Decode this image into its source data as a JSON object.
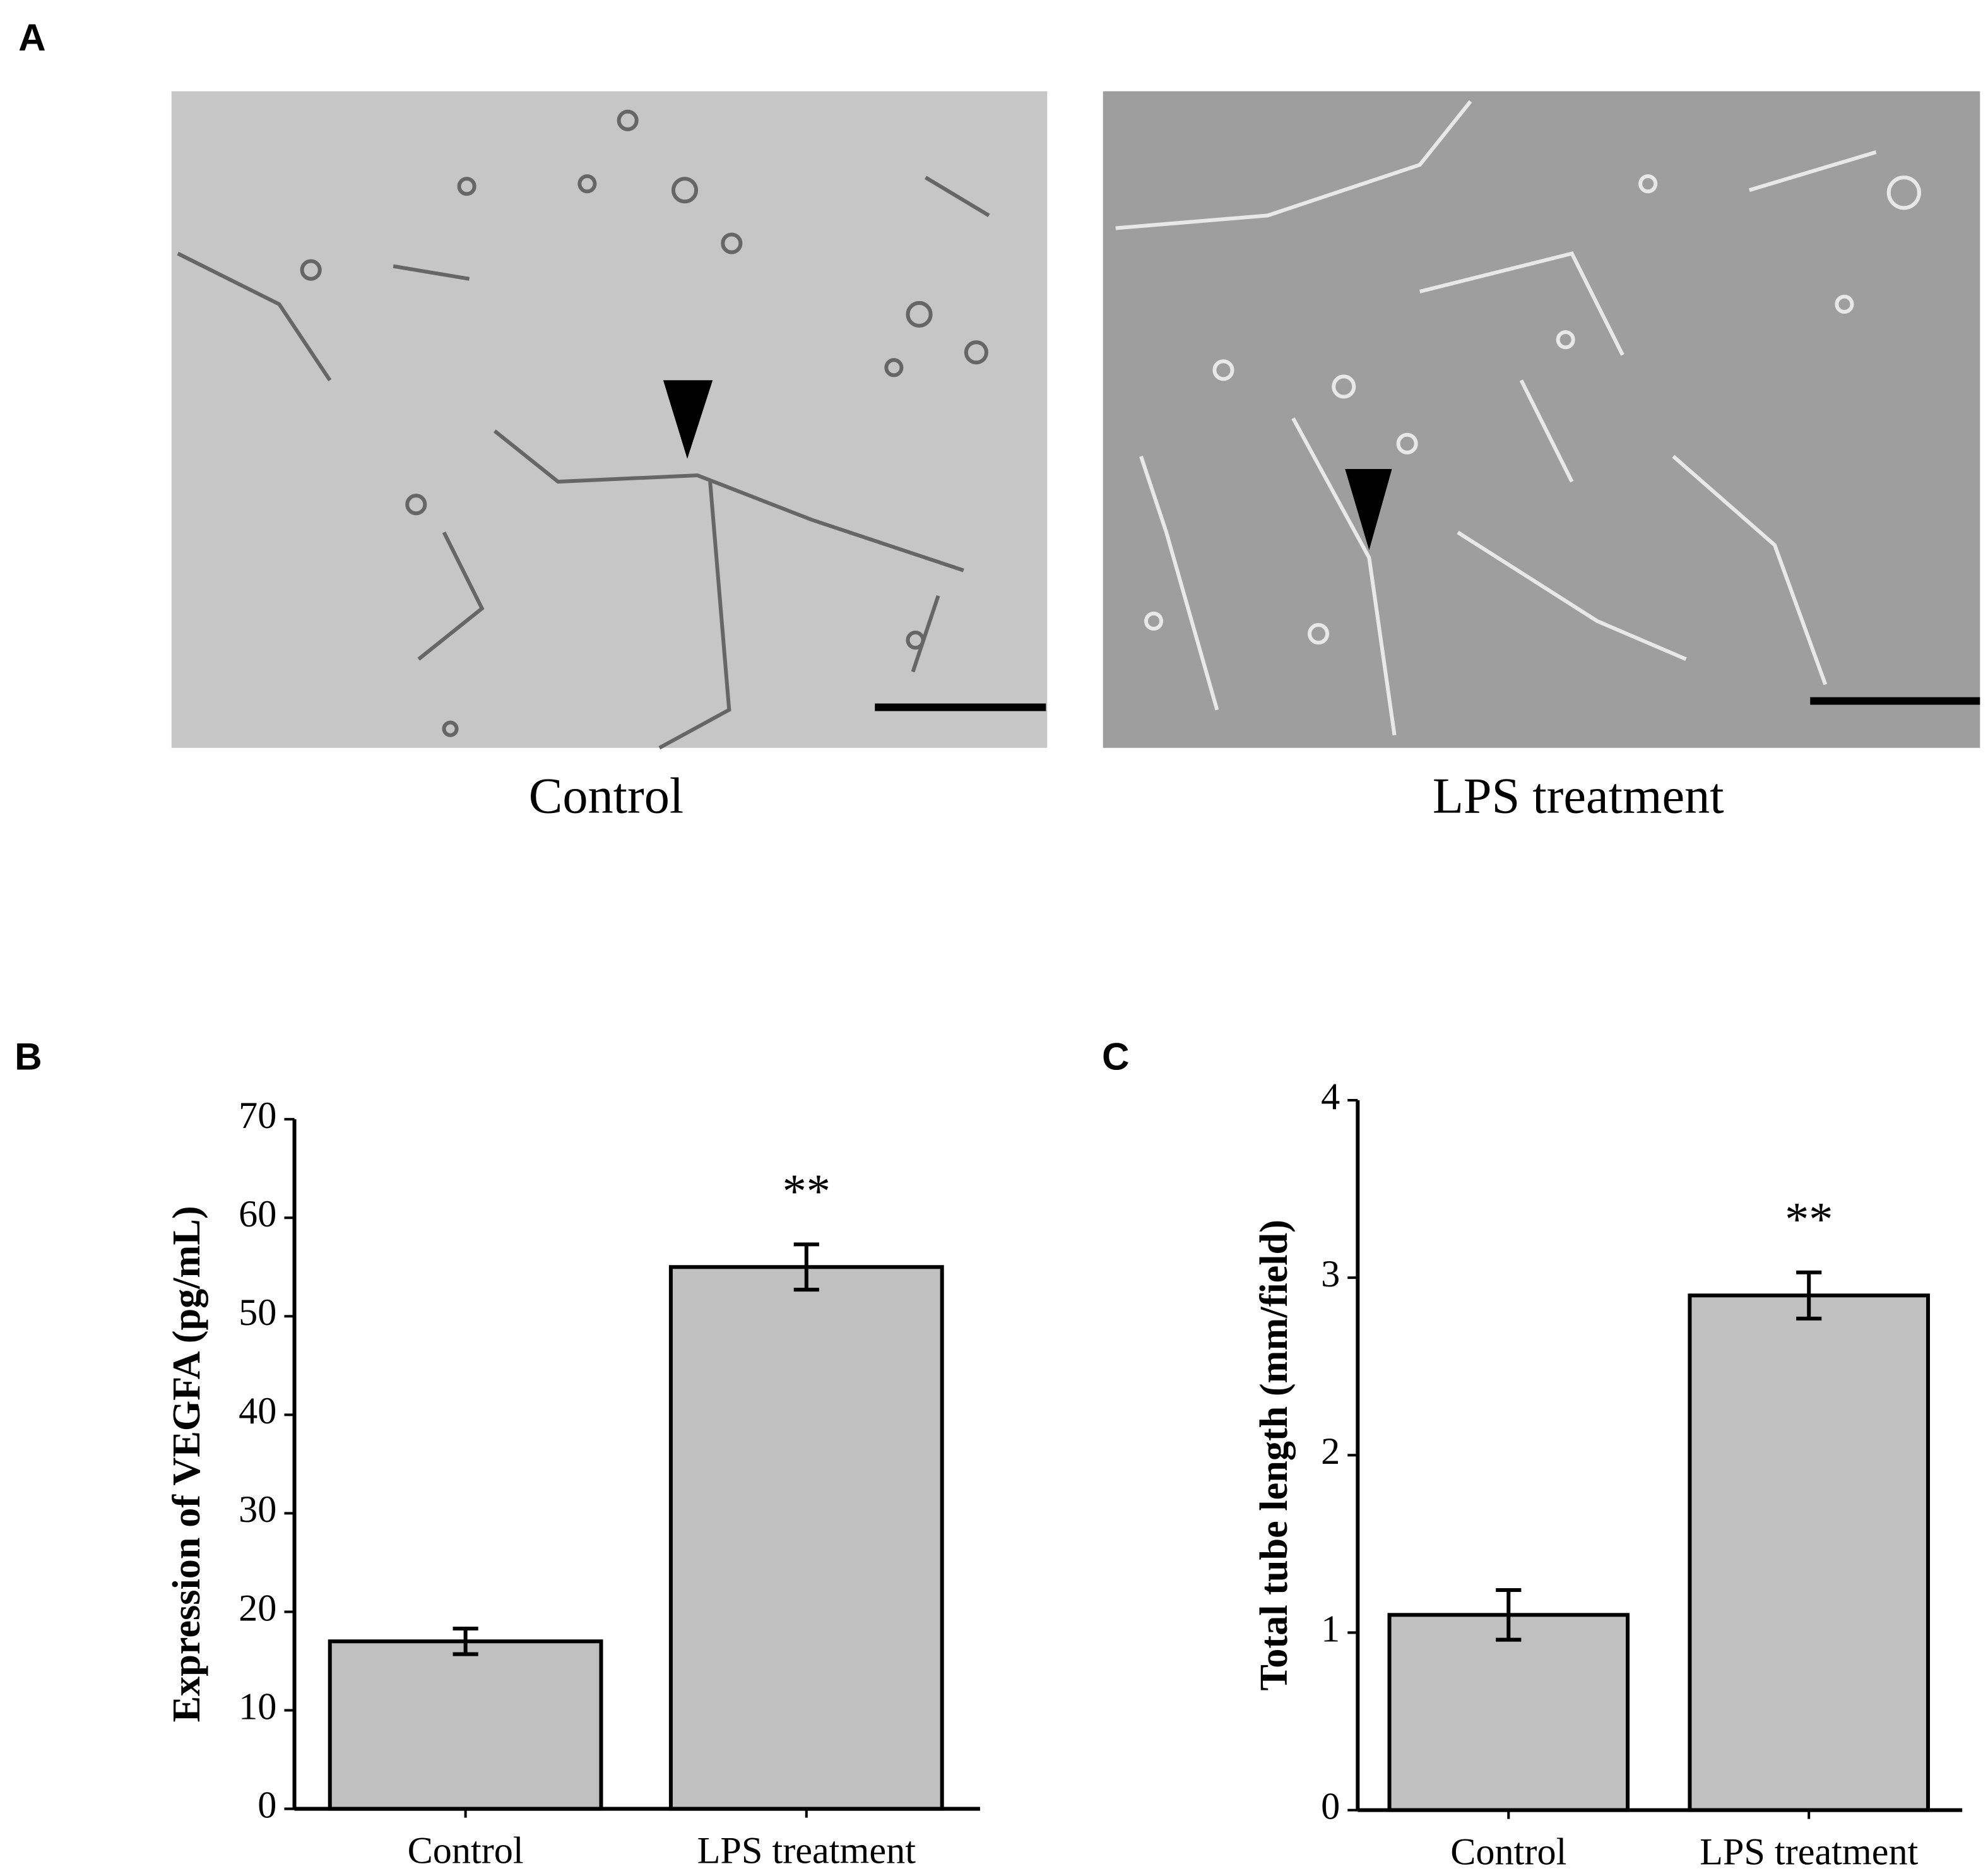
{
  "panel_labels": [
    "A",
    "B",
    "C"
  ],
  "images": [
    {
      "caption": "Control"
    },
    {
      "caption": "LPS treatment"
    }
  ],
  "chart_data": [
    {
      "type": "bar",
      "ylabel": "Expression of VEGFA (pg/mL)",
      "categories": [
        "Control",
        "LPS treatment"
      ],
      "values": [
        17,
        55
      ],
      "errors": [
        1.3,
        2.3
      ],
      "annotations": [
        null,
        "**"
      ],
      "color": "#c0c0c0",
      "ylim": [
        0,
        70
      ],
      "yticks": [
        0,
        10,
        20,
        30,
        40,
        50,
        60,
        70
      ]
    },
    {
      "type": "bar",
      "ylabel": "Total tube length (mm/field)",
      "categories": [
        "Control",
        "LPS treatment"
      ],
      "values": [
        1.1,
        2.9
      ],
      "errors": [
        0.14,
        0.13
      ],
      "annotations": [
        null,
        "**"
      ],
      "color": "#c0c0c0",
      "ylim": [
        0,
        4
      ],
      "yticks": [
        0,
        1,
        2,
        3,
        4
      ]
    }
  ]
}
